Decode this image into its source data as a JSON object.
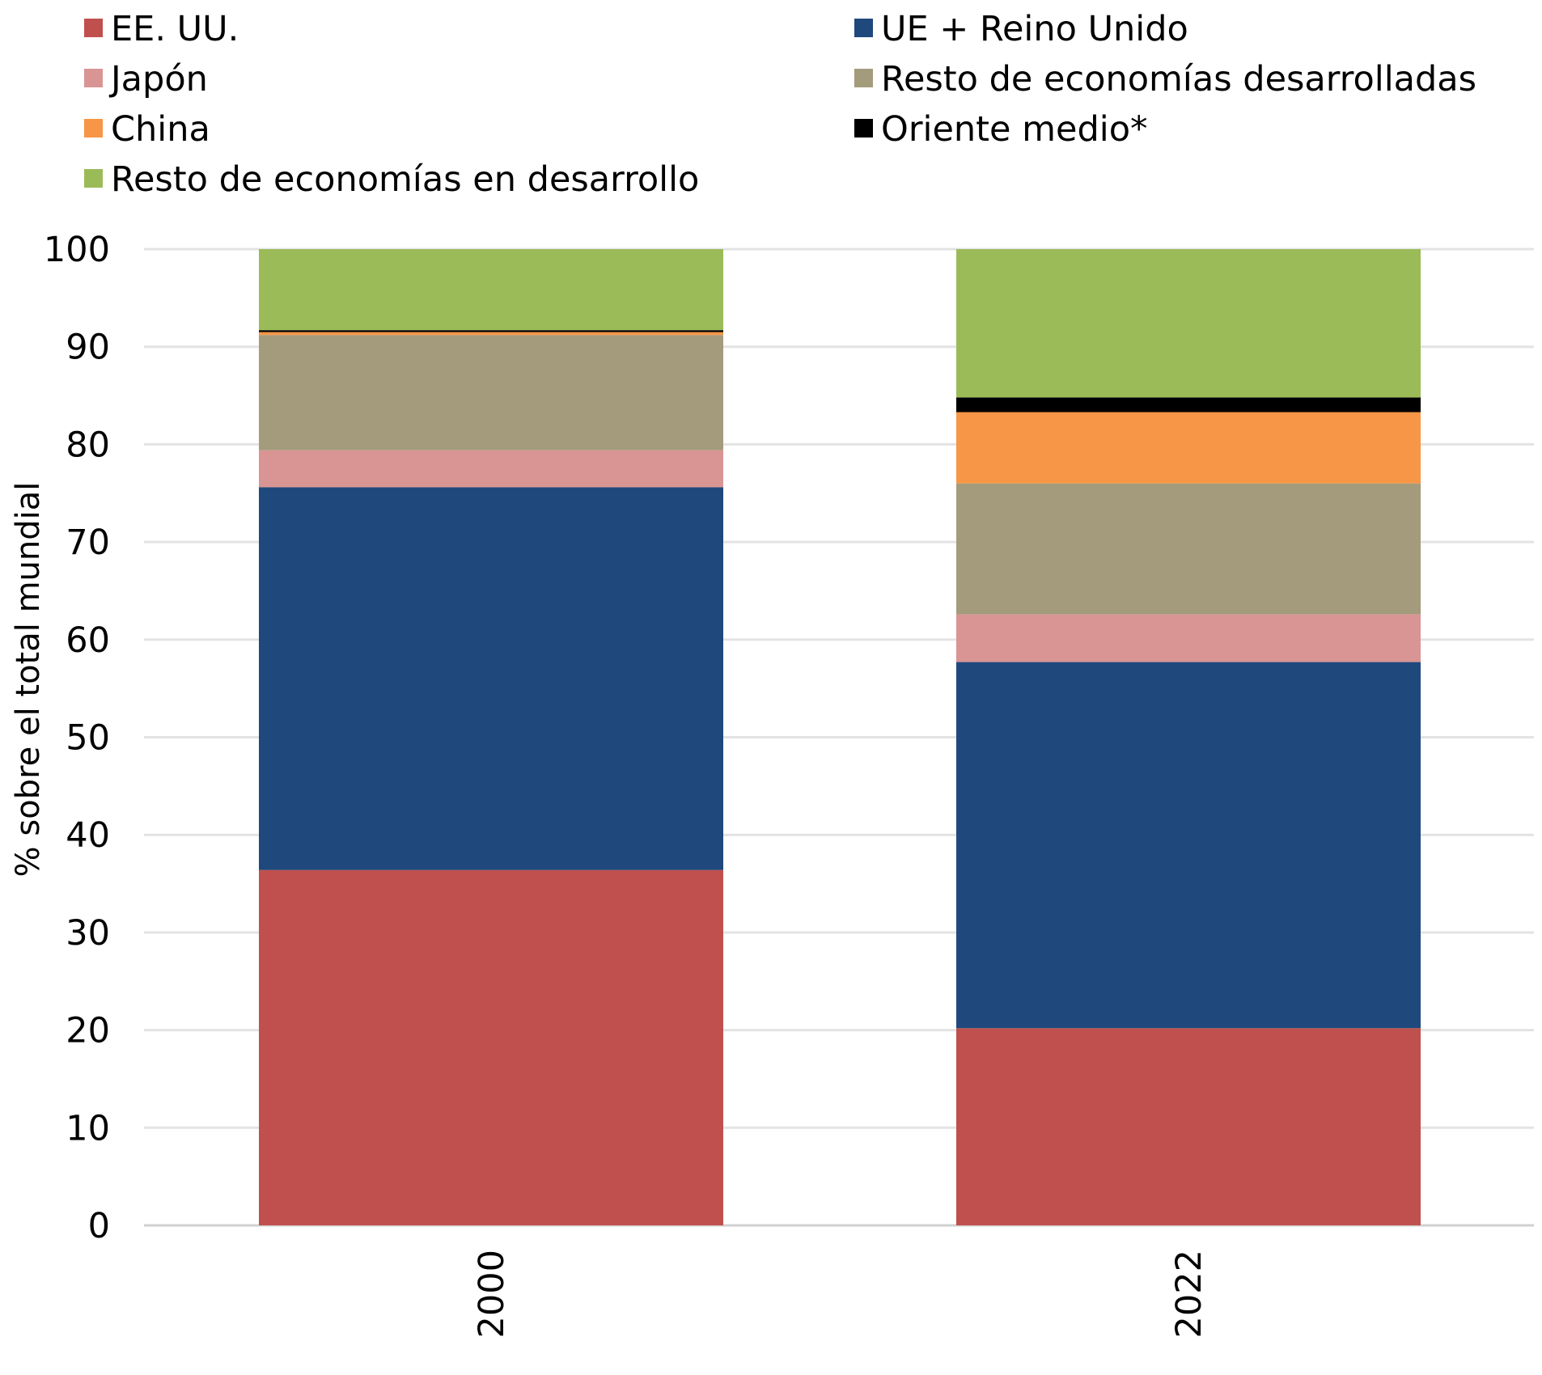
{
  "chart_data": {
    "type": "bar",
    "stacked": true,
    "categories": [
      "2000",
      "2022"
    ],
    "series": [
      {
        "name": "EE. UU.",
        "color": "#C0504D",
        "values": [
          36.4,
          20.2
        ]
      },
      {
        "name": "UE + Reino Unido",
        "color": "#1F497D",
        "values": [
          39.2,
          37.5
        ]
      },
      {
        "name": "Japón",
        "color": "#D99594",
        "values": [
          3.8,
          4.9
        ]
      },
      {
        "name": "Resto de economías desarrolladas",
        "color": "#A39B7C",
        "values": [
          11.8,
          13.4
        ]
      },
      {
        "name": "China",
        "color": "#F79646",
        "values": [
          0.3,
          7.3
        ]
      },
      {
        "name": "Oriente medio*",
        "color": "#000000",
        "values": [
          0.2,
          1.5
        ]
      },
      {
        "name": "Resto de economías en desarrollo",
        "color": "#9BBB59",
        "values": [
          8.3,
          15.2
        ]
      }
    ],
    "ylabel": "% sobre el total mundial",
    "ylim": [
      0,
      100
    ],
    "yticks": [
      0,
      10,
      20,
      30,
      40,
      50,
      60,
      70,
      80,
      90,
      100
    ],
    "grid": true,
    "legend_position": "top"
  }
}
